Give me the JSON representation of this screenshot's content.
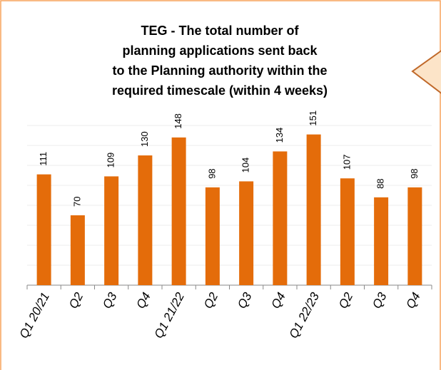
{
  "chart_data": {
    "type": "bar",
    "title": "TEG - The total number of planning applications sent back to the Planning authority within the required timescale (within 4 weeks)",
    "categories": [
      "Q1 20/21",
      "Q2",
      "Q3",
      "Q4",
      "Q1 21/22",
      "Q2",
      "Q3",
      "Q4",
      "Q1 22/23",
      "Q2",
      "Q3",
      "Q4"
    ],
    "values": [
      111,
      70,
      109,
      130,
      148,
      98,
      104,
      134,
      151,
      107,
      88,
      98
    ],
    "color": "#e46c0a",
    "ylim": [
      0,
      160
    ],
    "yticks": [
      0,
      20,
      40,
      60,
      80,
      100,
      120,
      140,
      160
    ],
    "grid": true
  }
}
